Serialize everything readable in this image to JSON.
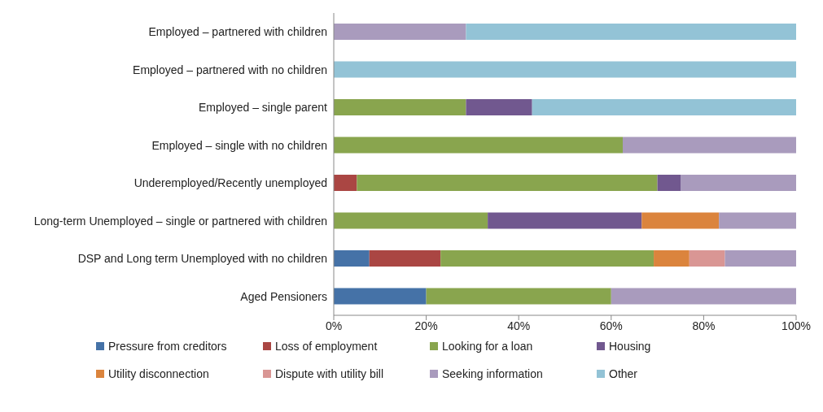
{
  "chart_data": {
    "type": "bar",
    "orientation": "horizontal",
    "stacked": true,
    "legend": "bottom",
    "grid": false,
    "categories": [
      "Employed – partnered with children",
      "Employed – partnered with no children",
      "Employed – single parent",
      "Employed – single with no children",
      "Underemployed/Recently unemployed",
      "Long-term Unemployed – single or partnered with children",
      "DSP and Long term Unemployed with no children",
      "Aged Pensioners"
    ],
    "xlim": [
      0,
      100
    ],
    "xticks": [
      {
        "value": 0,
        "label": "0%"
      },
      {
        "value": 20,
        "label": "20%"
      },
      {
        "value": 40,
        "label": "40%"
      },
      {
        "value": 60,
        "label": "60%"
      },
      {
        "value": 80,
        "label": "80%"
      },
      {
        "value": 100,
        "label": "100%"
      }
    ],
    "series": [
      {
        "name": "Pressure from creditors",
        "color": "#4572a7",
        "values": [
          null,
          null,
          null,
          null,
          null,
          null,
          7.7,
          20
        ]
      },
      {
        "name": "Loss of employment",
        "color": "#aa4643",
        "values": [
          null,
          null,
          null,
          null,
          5,
          null,
          15.4,
          null
        ]
      },
      {
        "name": "Looking for a loan",
        "color": "#89a54e",
        "values": [
          null,
          null,
          28.6,
          62.5,
          65,
          33.3,
          46.1,
          40
        ]
      },
      {
        "name": "Housing",
        "color": "#71588f",
        "values": [
          null,
          null,
          14.3,
          null,
          5,
          33.3,
          null,
          null
        ]
      },
      {
        "name": "Utility disconnection",
        "color": "#db843d",
        "values": [
          null,
          null,
          null,
          null,
          null,
          16.7,
          7.7,
          null
        ]
      },
      {
        "name": "Dispute with utility bill",
        "color": "#d99694",
        "values": [
          null,
          null,
          null,
          null,
          null,
          null,
          7.7,
          null
        ]
      },
      {
        "name": "Seeking information",
        "color": "#a99bbd",
        "values": [
          28.6,
          null,
          null,
          37.5,
          25,
          16.7,
          15.4,
          40
        ]
      },
      {
        "name": "Other",
        "color": "#93c3d6",
        "values": [
          71.4,
          100,
          57.1,
          null,
          null,
          null,
          null,
          null
        ]
      }
    ]
  }
}
